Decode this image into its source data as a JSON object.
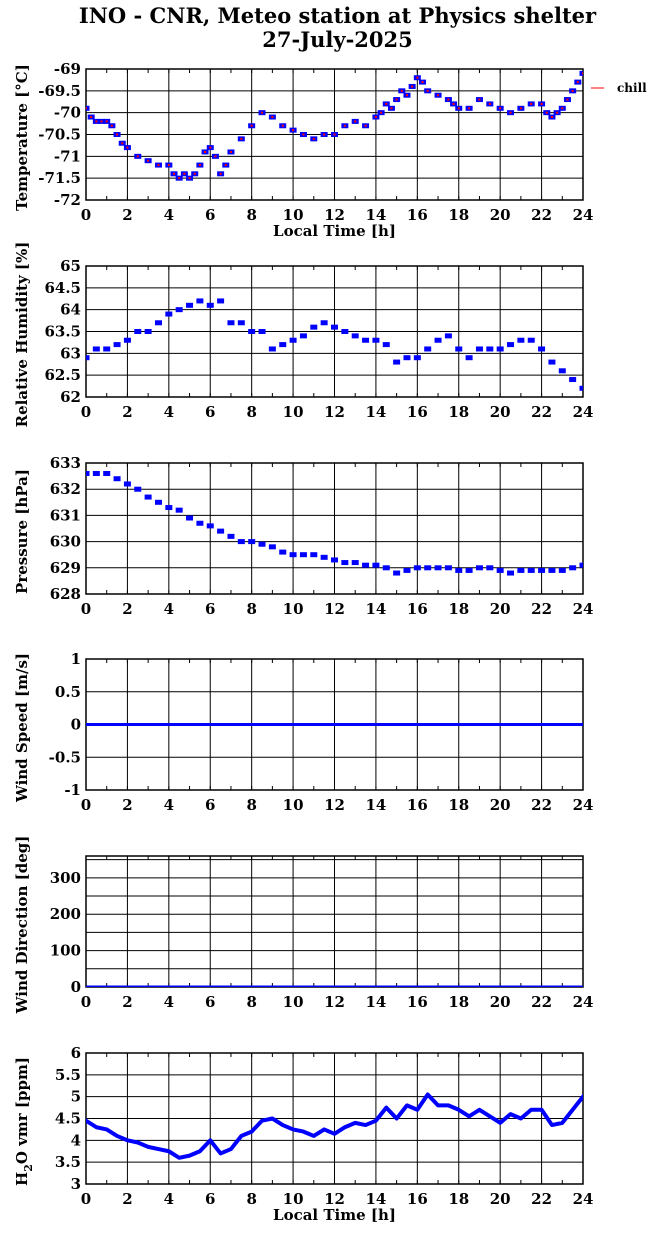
{
  "title": {
    "line1": "INO - CNR, Meteo station at Physics shelter",
    "line2": "27-July-2025"
  },
  "chart_data": [
    {
      "type": "scatter",
      "ylabel": "Temperature [°C]",
      "xlabel": "Local Time [h]",
      "xlim": [
        0,
        24
      ],
      "ylim": [
        -72,
        -69
      ],
      "xticks": [
        0,
        2,
        4,
        6,
        8,
        10,
        12,
        14,
        16,
        18,
        20,
        22,
        24
      ],
      "yticks": [
        -72,
        -71.5,
        -71,
        -70.5,
        -70,
        -69.5,
        -69
      ],
      "grid": true,
      "legend": {
        "position": "outside-top-right",
        "entries": [
          "chill"
        ]
      },
      "series": [
        {
          "color": "#0000ff",
          "marker": "square",
          "x": [
            0,
            0.25,
            0.5,
            0.75,
            1,
            1.25,
            1.5,
            1.75,
            2,
            2.5,
            3,
            3.5,
            4,
            4.25,
            4.5,
            4.75,
            5,
            5.25,
            5.5,
            5.75,
            6,
            6.25,
            6.5,
            6.75,
            7,
            7.5,
            8,
            8.5,
            9,
            9.5,
            10,
            10.5,
            11,
            11.5,
            12,
            12.5,
            13,
            13.5,
            14,
            14.25,
            14.5,
            14.75,
            15,
            15.25,
            15.5,
            15.75,
            16,
            16.25,
            16.5,
            17,
            17.5,
            17.75,
            18,
            18.5,
            19,
            19.5,
            20,
            20.5,
            21,
            21.5,
            22,
            22.25,
            22.5,
            22.75,
            23,
            23.25,
            23.5,
            23.75,
            24
          ],
          "y": [
            -69.9,
            -70.1,
            -70.2,
            -70.2,
            -70.2,
            -70.3,
            -70.5,
            -70.7,
            -70.8,
            -71,
            -71.1,
            -71.2,
            -71.2,
            -71.4,
            -71.5,
            -71.4,
            -71.5,
            -71.4,
            -71.2,
            -70.9,
            -70.8,
            -71,
            -71.4,
            -71.2,
            -70.9,
            -70.6,
            -70.3,
            -70,
            -70.1,
            -70.3,
            -70.4,
            -70.5,
            -70.6,
            -70.5,
            -70.5,
            -70.3,
            -70.2,
            -70.3,
            -70.1,
            -70,
            -69.8,
            -69.9,
            -69.7,
            -69.5,
            -69.6,
            -69.4,
            -69.2,
            -69.3,
            -69.5,
            -69.6,
            -69.7,
            -69.8,
            -69.9,
            -69.9,
            -69.7,
            -69.8,
            -69.9,
            -70,
            -69.9,
            -69.8,
            -69.8,
            -70,
            -70.1,
            -70,
            -69.9,
            -69.7,
            -69.5,
            -69.3,
            -69.1
          ]
        },
        {
          "name": "chill",
          "color": "#ff0000",
          "marker": "dot",
          "x": [
            0,
            0.25,
            0.5,
            0.75,
            1,
            1.25,
            1.5,
            1.75,
            2,
            2.5,
            3,
            3.5,
            4,
            4.25,
            4.5,
            4.75,
            5,
            5.25,
            5.5,
            5.75,
            6,
            6.25,
            6.5,
            6.75,
            7,
            7.5,
            8,
            8.5,
            9,
            9.5,
            10,
            10.5,
            11,
            11.5,
            12,
            12.5,
            13,
            13.5,
            14,
            14.25,
            14.5,
            14.75,
            15,
            15.25,
            15.5,
            15.75,
            16,
            16.25,
            16.5,
            17,
            17.5,
            17.75,
            18,
            18.5,
            19,
            19.5,
            20,
            20.5,
            21,
            21.5,
            22,
            22.25,
            22.5,
            22.75,
            23,
            23.25,
            23.5,
            23.75,
            24
          ],
          "y": [
            -69.9,
            -70.1,
            -70.2,
            -70.2,
            -70.2,
            -70.3,
            -70.5,
            -70.7,
            -70.8,
            -71,
            -71.1,
            -71.2,
            -71.2,
            -71.4,
            -71.5,
            -71.4,
            -71.5,
            -71.4,
            -71.2,
            -70.9,
            -70.8,
            -71,
            -71.4,
            -71.2,
            -70.9,
            -70.6,
            -70.3,
            -70,
            -70.1,
            -70.3,
            -70.4,
            -70.5,
            -70.6,
            -70.5,
            -70.5,
            -70.3,
            -70.2,
            -70.3,
            -70.1,
            -70,
            -69.8,
            -69.9,
            -69.7,
            -69.5,
            -69.6,
            -69.4,
            -69.2,
            -69.3,
            -69.5,
            -69.6,
            -69.7,
            -69.8,
            -69.9,
            -69.9,
            -69.7,
            -69.8,
            -69.9,
            -70,
            -69.9,
            -69.8,
            -69.8,
            -70,
            -70.1,
            -70,
            -69.9,
            -69.7,
            -69.5,
            -69.3,
            -69.1
          ]
        }
      ]
    },
    {
      "type": "scatter",
      "ylabel": "Relative Humidity [%]",
      "xlabel": "",
      "xlim": [
        0,
        24
      ],
      "ylim": [
        62,
        65
      ],
      "xticks": [
        0,
        2,
        4,
        6,
        8,
        10,
        12,
        14,
        16,
        18,
        20,
        22,
        24
      ],
      "yticks": [
        62,
        62.5,
        63,
        63.5,
        64,
        64.5,
        65
      ],
      "grid": true,
      "series": [
        {
          "color": "#0000ff",
          "marker": "square",
          "x": [
            0,
            0.5,
            1,
            1.5,
            2,
            2.5,
            3,
            3.5,
            4,
            4.5,
            5,
            5.5,
            6,
            6.5,
            7,
            7.5,
            8,
            8.5,
            9,
            9.5,
            10,
            10.5,
            11,
            11.5,
            12,
            12.5,
            13,
            13.5,
            14,
            14.5,
            15,
            15.5,
            16,
            16.5,
            17,
            17.5,
            18,
            18.5,
            19,
            19.5,
            20,
            20.5,
            21,
            21.5,
            22,
            22.5,
            23,
            23.5,
            24
          ],
          "y": [
            62.9,
            63.1,
            63.1,
            63.2,
            63.3,
            63.5,
            63.5,
            63.7,
            63.9,
            64,
            64.1,
            64.2,
            64.1,
            64.2,
            63.7,
            63.7,
            63.5,
            63.5,
            63.1,
            63.2,
            63.3,
            63.4,
            63.6,
            63.7,
            63.6,
            63.5,
            63.4,
            63.3,
            63.3,
            63.2,
            62.8,
            62.9,
            62.9,
            63.1,
            63.3,
            63.4,
            63.1,
            62.9,
            63.1,
            63.1,
            63.1,
            63.2,
            63.3,
            63.3,
            63.1,
            62.8,
            62.6,
            62.4,
            62.2
          ]
        }
      ]
    },
    {
      "type": "scatter",
      "ylabel": "Pressure [hPa]",
      "xlabel": "",
      "xlim": [
        0,
        24
      ],
      "ylim": [
        628,
        633
      ],
      "xticks": [
        0,
        2,
        4,
        6,
        8,
        10,
        12,
        14,
        16,
        18,
        20,
        22,
        24
      ],
      "yticks": [
        628,
        629,
        630,
        631,
        632,
        633
      ],
      "grid": true,
      "series": [
        {
          "color": "#0000ff",
          "marker": "square",
          "x": [
            0,
            0.5,
            1,
            1.5,
            2,
            2.5,
            3,
            3.5,
            4,
            4.5,
            5,
            5.5,
            6,
            6.5,
            7,
            7.5,
            8,
            8.5,
            9,
            9.5,
            10,
            10.5,
            11,
            11.5,
            12,
            12.5,
            13,
            13.5,
            14,
            14.5,
            15,
            15.5,
            16,
            16.5,
            17,
            17.5,
            18,
            18.5,
            19,
            19.5,
            20,
            20.5,
            21,
            21.5,
            22,
            22.5,
            23,
            23.5,
            24
          ],
          "y": [
            632.6,
            632.6,
            632.6,
            632.4,
            632.2,
            632,
            631.7,
            631.5,
            631.3,
            631.2,
            630.9,
            630.7,
            630.6,
            630.4,
            630.2,
            630,
            630,
            629.9,
            629.8,
            629.6,
            629.5,
            629.5,
            629.5,
            629.4,
            629.3,
            629.2,
            629.2,
            629.1,
            629.1,
            629,
            628.8,
            628.9,
            629,
            629,
            629,
            629,
            628.9,
            628.9,
            629,
            629,
            628.9,
            628.8,
            628.9,
            628.9,
            628.9,
            628.9,
            628.9,
            629,
            629.1
          ]
        }
      ]
    },
    {
      "type": "line",
      "ylabel": "Wind Speed [m/s]",
      "xlabel": "",
      "xlim": [
        0,
        24
      ],
      "ylim": [
        -1,
        1
      ],
      "xticks": [
        0,
        2,
        4,
        6,
        8,
        10,
        12,
        14,
        16,
        18,
        20,
        22,
        24
      ],
      "yticks": [
        -1,
        -0.5,
        0,
        0.5,
        1
      ],
      "grid": true,
      "series": [
        {
          "color": "#0000ff",
          "marker": "line",
          "x": [
            0,
            24
          ],
          "y": [
            0,
            0
          ]
        }
      ]
    },
    {
      "type": "line",
      "ylabel": "Wind Direction [deg]",
      "xlabel": "",
      "xlim": [
        0,
        24
      ],
      "ylim": [
        0,
        360
      ],
      "xticks": [
        0,
        2,
        4,
        6,
        8,
        10,
        12,
        14,
        16,
        18,
        20,
        22,
        24
      ],
      "yticks": [
        0,
        100,
        200,
        300
      ],
      "ygrid": [
        0,
        50,
        100,
        150,
        200,
        250,
        300,
        350
      ],
      "grid": true,
      "series": [
        {
          "color": "#0000ff",
          "marker": "line",
          "x": [
            0,
            24
          ],
          "y": [
            0,
            0
          ]
        }
      ]
    },
    {
      "type": "line",
      "ylabel": "H2O vmr [ppm]",
      "ylabel_parts": [
        "H",
        "2",
        "O vmr [ppm]"
      ],
      "xlabel": "Local Time [h]",
      "xlim": [
        0,
        24
      ],
      "ylim": [
        3,
        6
      ],
      "xticks": [
        0,
        2,
        4,
        6,
        8,
        10,
        12,
        14,
        16,
        18,
        20,
        22,
        24
      ],
      "yticks": [
        3,
        3.5,
        4,
        4.5,
        5,
        5.5,
        6
      ],
      "grid": true,
      "series": [
        {
          "color": "#0000ff",
          "marker": "thick-line",
          "x": [
            0,
            0.5,
            1,
            1.5,
            2,
            2.5,
            3,
            3.5,
            4,
            4.5,
            5,
            5.5,
            6,
            6.5,
            7,
            7.5,
            8,
            8.5,
            9,
            9.5,
            10,
            10.5,
            11,
            11.5,
            12,
            12.5,
            13,
            13.5,
            14,
            14.5,
            15,
            15.5,
            16,
            16.5,
            17,
            17.5,
            18,
            18.5,
            19,
            19.5,
            20,
            20.5,
            21,
            21.5,
            22,
            22.5,
            23,
            23.5,
            24
          ],
          "y": [
            4.45,
            4.3,
            4.25,
            4.1,
            4.0,
            3.95,
            3.85,
            3.8,
            3.75,
            3.6,
            3.65,
            3.75,
            4.0,
            3.7,
            3.8,
            4.1,
            4.2,
            4.45,
            4.5,
            4.35,
            4.25,
            4.2,
            4.1,
            4.25,
            4.15,
            4.3,
            4.4,
            4.35,
            4.45,
            4.75,
            4.5,
            4.8,
            4.7,
            5.05,
            4.8,
            4.8,
            4.7,
            4.55,
            4.7,
            4.55,
            4.4,
            4.6,
            4.5,
            4.7,
            4.7,
            4.35,
            4.4,
            4.7,
            5.0
          ]
        }
      ]
    }
  ]
}
